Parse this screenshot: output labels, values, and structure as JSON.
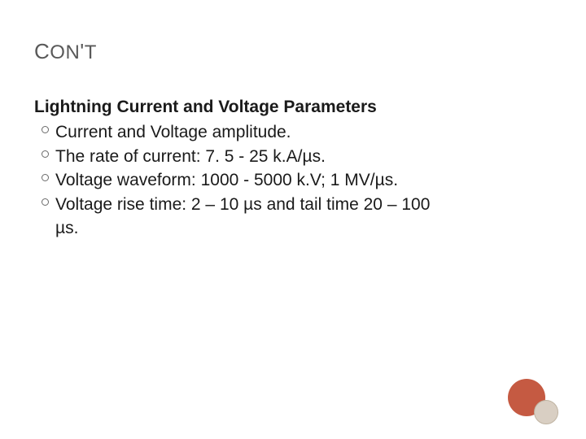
{
  "title": {
    "c1": "C",
    "on": "ON",
    "ap": "'",
    "t": "T",
    "color": "#595959",
    "fontsize_big": 26,
    "fontsize_small": 24
  },
  "body": {
    "subhead": "Lightning Current and Voltage Parameters",
    "fontsize": 21,
    "text_color": "#1a1a1a",
    "bullet_border_color": "#6a6a6a",
    "items": [
      {
        "text": "Current and Voltage amplitude."
      },
      {
        "text": "The rate of current: 7. 5 - 25 k.A/µs."
      },
      {
        "text": "Voltage waveform: 1000 - 5000 k.V; 1 MV/µs."
      },
      {
        "text": "Voltage rise time: 2 – 10 µs and tail time 20 – 100"
      }
    ],
    "trailing": "µs."
  },
  "decor": {
    "large_color": "#c55a42",
    "small_fill": "#d9cfc3",
    "small_border": "#bfb3a1"
  },
  "background_color": "#ffffff"
}
